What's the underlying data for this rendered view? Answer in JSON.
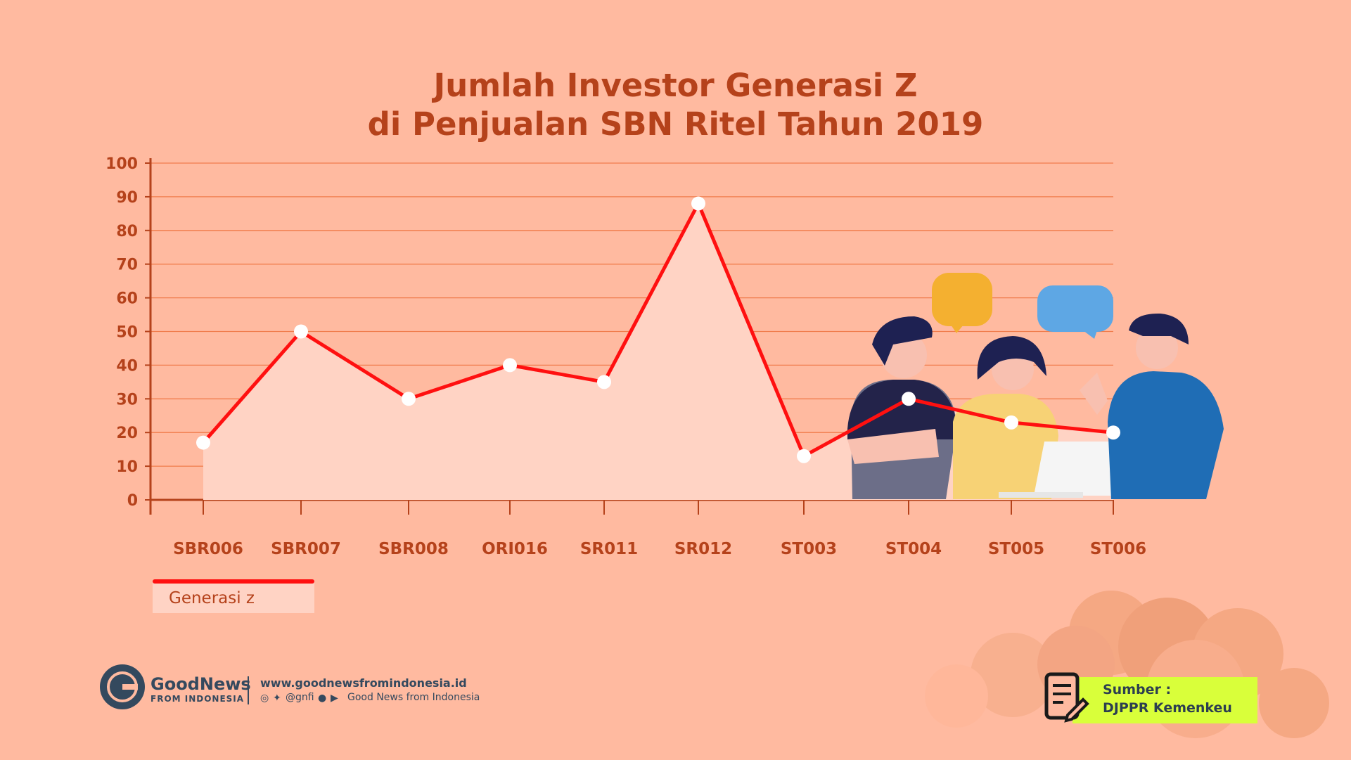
{
  "colors": {
    "background": "#FFBAA0",
    "title": "#B5421B",
    "line": "#FF1010",
    "area": "#FFD3C4",
    "gridline": "#F07C4C",
    "source_box": "#D9FF3A"
  },
  "chart_data": {
    "type": "line",
    "title_line1": "Jumlah Investor Generasi Z",
    "title_line2": "di Penjualan SBN Ritel Tahun 2019",
    "categories": [
      "SBR006",
      "SBR007",
      "SBR008",
      "ORI016",
      "SR011",
      "SR012",
      "ST003",
      "ST004",
      "ST005",
      "ST006"
    ],
    "series": [
      {
        "name": "Generasi z",
        "values": [
          17,
          50,
          30,
          40,
          35,
          88,
          13,
          30,
          23,
          20
        ]
      }
    ],
    "y_ticks": [
      "0",
      "10",
      "20",
      "30",
      "40",
      "50",
      "60",
      "70",
      "80",
      "90",
      "100"
    ],
    "ylim": [
      0,
      100
    ],
    "grid": true,
    "legend_position": "bottom-left"
  },
  "brand": {
    "name": "GoodNews",
    "sub": "FROM INDONESIA",
    "website": "www.goodnewsfromindonesia.id",
    "handle": "@gnfi",
    "channel": "Good News from Indonesia"
  },
  "source": {
    "label": "Sumber :",
    "value": "DJPPR Kemenkeu"
  },
  "icons": [
    "instagram-icon",
    "twitter-icon",
    "facebook-icon",
    "youtube-icon",
    "document-edit-icon",
    "garuda-logo-icon"
  ]
}
